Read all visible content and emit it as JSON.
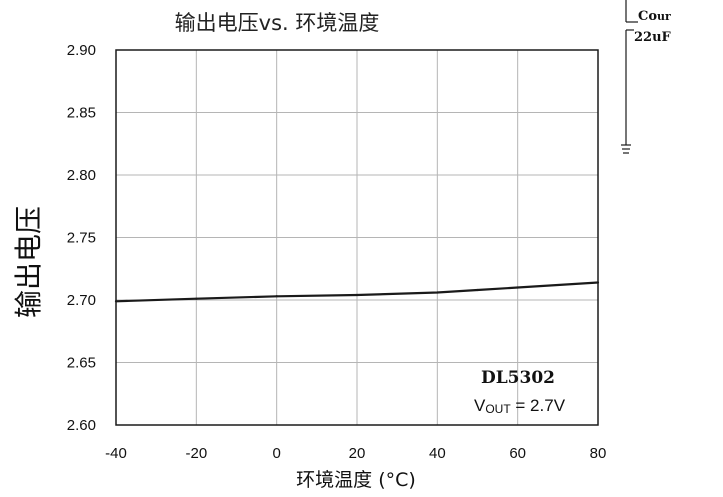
{
  "chart_data": {
    "type": "line",
    "title": "输出电压vs. 环境温度",
    "xlabel": "环境温度 (°C)",
    "ylabel": "输出电压",
    "xlim": [
      -40,
      80
    ],
    "ylim": [
      2.6,
      2.9
    ],
    "x_ticks": [
      "-40",
      "-20",
      "0",
      "20",
      "40",
      "60",
      "80"
    ],
    "y_ticks": [
      "2.90",
      "2.85",
      "2.80",
      "2.75",
      "2.70",
      "2.65",
      "2.60"
    ],
    "grid": true,
    "legend": "none",
    "series": [
      {
        "x": [
          -40,
          -20,
          0,
          20,
          40,
          50,
          60,
          80
        ],
        "y": [
          2.699,
          2.701,
          2.703,
          2.704,
          2.706,
          2.708,
          2.71,
          2.714
        ]
      }
    ],
    "annotation": {
      "part": "DL5302",
      "condition_prefix": "V",
      "condition_sub": "OUT",
      "condition_value": " = 2.7V"
    },
    "line_color": "#1a1a1a",
    "grid_color": "#b5b5b5"
  },
  "corner_fragment": {
    "line1": "Co",
    "line1b": "ur",
    "line2": "22uF"
  }
}
